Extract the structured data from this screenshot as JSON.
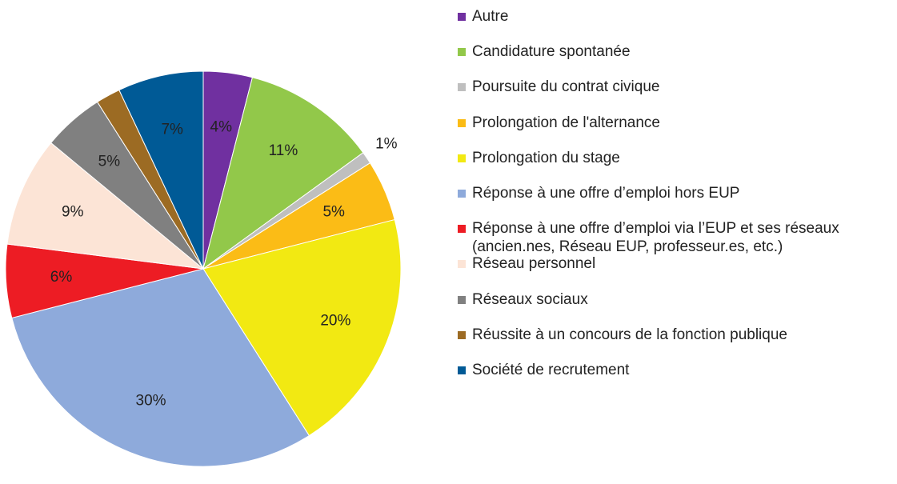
{
  "chart_data": {
    "type": "pie",
    "categories": [
      "Autre",
      "Candidature spontanée",
      "Poursuite du contrat civique",
      "Prolongation de l'alternance",
      "Prolongation du stage",
      "Réponse à une offre d’emploi hors EUP",
      "Réponse à une offre d’emploi via l’EUP et ses réseaux (ancien.nes, Réseau EUP, professeur.es, etc.)",
      "Réseau personnel",
      "Réseaux sociaux",
      "Réussite à un concours de la fonction publique",
      "Société de recrutement"
    ],
    "values": [
      4,
      11,
      1,
      5,
      20,
      30,
      6,
      9,
      5,
      2,
      7
    ],
    "value_labels": [
      "4%",
      "11%",
      "1%",
      "5%",
      "20%",
      "30%",
      "6%",
      "9%",
      "5%",
      null,
      "7%"
    ],
    "colors": [
      "#7030a0",
      "#92c84a",
      "#bfbfbf",
      "#fbbc16",
      "#f2e912",
      "#8eaadb",
      "#ed1c24",
      "#fce4d6",
      "#808080",
      "#9c6b23",
      "#005a96"
    ]
  }
}
